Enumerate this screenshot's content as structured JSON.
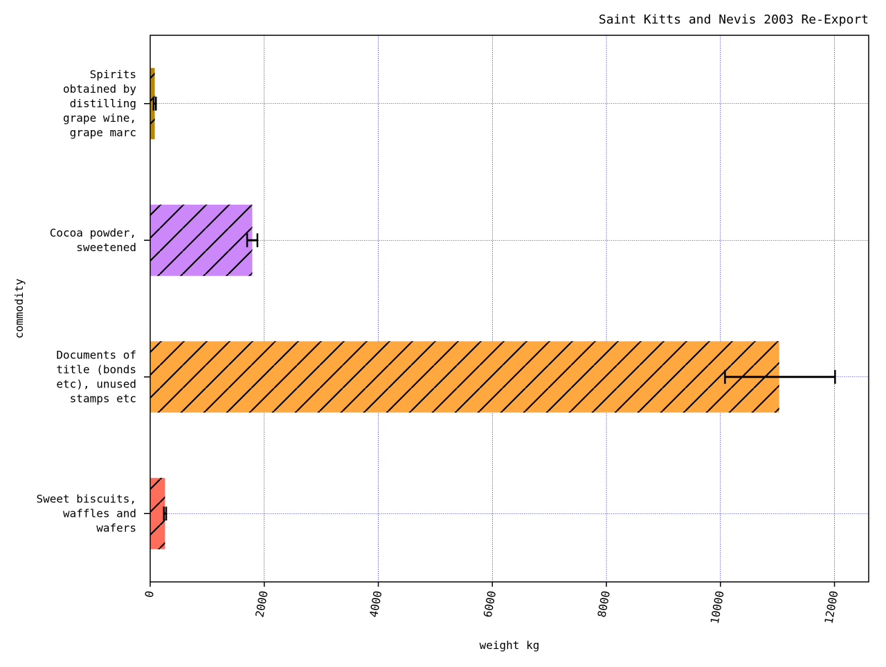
{
  "chart_data": {
    "type": "bar",
    "orientation": "horizontal",
    "title": "Saint Kitts and Nevis 2003 Re-Export",
    "xlabel": "weight kg",
    "ylabel": "commodity",
    "xlim": [
      0,
      12600
    ],
    "xticks": [
      0,
      2000,
      4000,
      6000,
      8000,
      10000,
      12000
    ],
    "grid": true,
    "hatch": "diagonal",
    "categories": [
      {
        "lines": [
          "Spirits",
          "obtained by",
          "distilling",
          "grape wine,",
          "grape marc"
        ]
      },
      {
        "lines": [
          "Cocoa powder,",
          "sweetened"
        ]
      },
      {
        "lines": [
          "Documents of",
          "title (bonds",
          "etc), unused",
          "stamps etc"
        ]
      },
      {
        "lines": [
          "Sweet biscuits,",
          "waffles and",
          "wafers"
        ]
      }
    ],
    "values": [
      80,
      1790,
      11030,
      260
    ],
    "error_low": [
      60,
      1700,
      10080,
      240
    ],
    "error_high": [
      100,
      1880,
      12010,
      280
    ],
    "colors": [
      "#b8860b",
      "#cc88f8",
      "#ffa840",
      "#ff6e5a"
    ],
    "grid_color": "#0000cc",
    "error_color": "#000000"
  }
}
